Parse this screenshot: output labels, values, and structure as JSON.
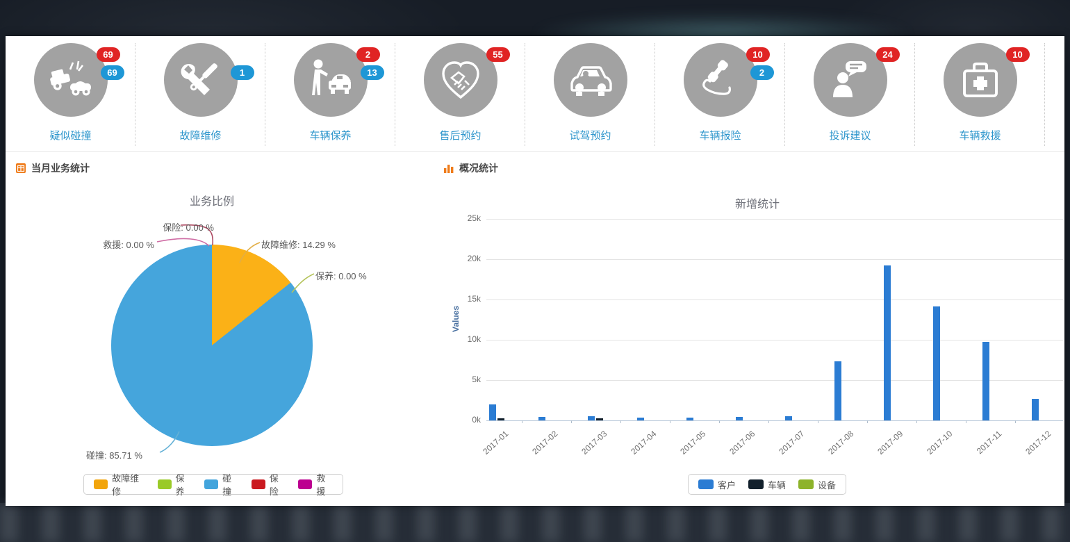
{
  "quick_actions": [
    {
      "label": "疑似碰撞",
      "icon": "car-crash-icon",
      "badges": [
        {
          "value": "69",
          "color": "red"
        },
        {
          "value": "69",
          "color": "blue"
        }
      ]
    },
    {
      "label": "故障维修",
      "icon": "repair-tools-icon",
      "badges": [
        {
          "value": "1",
          "color": "blue"
        }
      ]
    },
    {
      "label": "车辆保养",
      "icon": "vehicle-maintenance-icon",
      "badges": [
        {
          "value": "2",
          "color": "red"
        },
        {
          "value": "13",
          "color": "blue"
        }
      ]
    },
    {
      "label": "售后预约",
      "icon": "handshake-heart-icon",
      "badges": [
        {
          "value": "55",
          "color": "red"
        }
      ]
    },
    {
      "label": "试驾预约",
      "icon": "test-drive-car-icon",
      "badges": []
    },
    {
      "label": "车辆报险",
      "icon": "phone-handset-icon",
      "badges": [
        {
          "value": "10",
          "color": "red"
        },
        {
          "value": "2",
          "color": "blue"
        }
      ]
    },
    {
      "label": "投诉建议",
      "icon": "person-chat-icon",
      "badges": [
        {
          "value": "24",
          "color": "red"
        }
      ]
    },
    {
      "label": "车辆救援",
      "icon": "first-aid-kit-icon",
      "badges": [
        {
          "value": "10",
          "color": "red"
        }
      ]
    }
  ],
  "sections": {
    "left_header": "当月业务统计",
    "right_header": "概况统计"
  },
  "chart_data": [
    {
      "type": "pie",
      "title": "业务比例",
      "slices": [
        {
          "name": "故障维修",
          "pct": 14.29,
          "color": "#FBB117"
        },
        {
          "name": "保养",
          "pct": 0.0,
          "color": "#9ACA28"
        },
        {
          "name": "碰撞",
          "pct": 85.71,
          "color": "#45A5DC"
        },
        {
          "name": "保险",
          "pct": 0.0,
          "color": "#CA1A20"
        },
        {
          "name": "救援",
          "pct": 0.0,
          "color": "#BC0090"
        }
      ],
      "callouts": [
        {
          "text": "保险: 0.00 %"
        },
        {
          "text": "救援: 0.00 %"
        },
        {
          "text": "故障维修: 14.29 %"
        },
        {
          "text": "保养: 0.00 %"
        },
        {
          "text": "碰撞: 85.71 %"
        }
      ],
      "legend": [
        {
          "name": "故障维修",
          "color": "#F2A50C"
        },
        {
          "name": "保养",
          "color": "#9ACA28"
        },
        {
          "name": "碰撞",
          "color": "#42A4DC"
        },
        {
          "name": "保险",
          "color": "#CA1A20"
        },
        {
          "name": "救援",
          "color": "#BC0090"
        }
      ],
      "legend_position": "bottom"
    },
    {
      "type": "bar",
      "title": "新增统计",
      "ylabel": "Values",
      "ylim": [
        0,
        25000
      ],
      "yticks": [
        "0k",
        "5k",
        "10k",
        "15k",
        "20k",
        "25k"
      ],
      "categories": [
        "2017-01",
        "2017-02",
        "2017-03",
        "2017-04",
        "2017-05",
        "2017-06",
        "2017-07",
        "2017-08",
        "2017-09",
        "2017-10",
        "2017-11",
        "2017-12"
      ],
      "series": [
        {
          "name": "客户",
          "color": "#2B7CD3",
          "values": [
            2000,
            400,
            500,
            350,
            350,
            400,
            500,
            7300,
            19200,
            14100,
            9700,
            2700
          ]
        },
        {
          "name": "车辆",
          "color": "#12202C",
          "values": [
            300,
            0,
            250,
            0,
            0,
            0,
            0,
            0,
            0,
            0,
            0,
            0
          ]
        },
        {
          "name": "设备",
          "color": "#8DB32A",
          "values": [
            0,
            0,
            0,
            0,
            0,
            0,
            0,
            0,
            0,
            0,
            0,
            0
          ]
        }
      ],
      "grid": true,
      "legend_position": "bottom"
    }
  ]
}
